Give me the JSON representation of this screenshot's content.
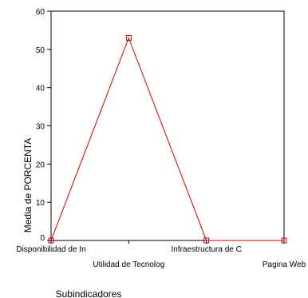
{
  "chart_data": {
    "type": "line",
    "categories": [
      "Disponibilidad de In",
      "Utilidad de Tecnolog",
      "Infraestructura de C",
      "Pagina Web"
    ],
    "series": [
      {
        "values": [
          0,
          53,
          0,
          0
        ],
        "color": "#cc0000"
      }
    ],
    "xlabel": "Subindicadores",
    "ylabel": "Media de PORCENTA",
    "ylim": [
      0,
      60
    ],
    "yticks": [
      0,
      10,
      20,
      30,
      40,
      50,
      60
    ],
    "grid": false,
    "marker": "square"
  }
}
